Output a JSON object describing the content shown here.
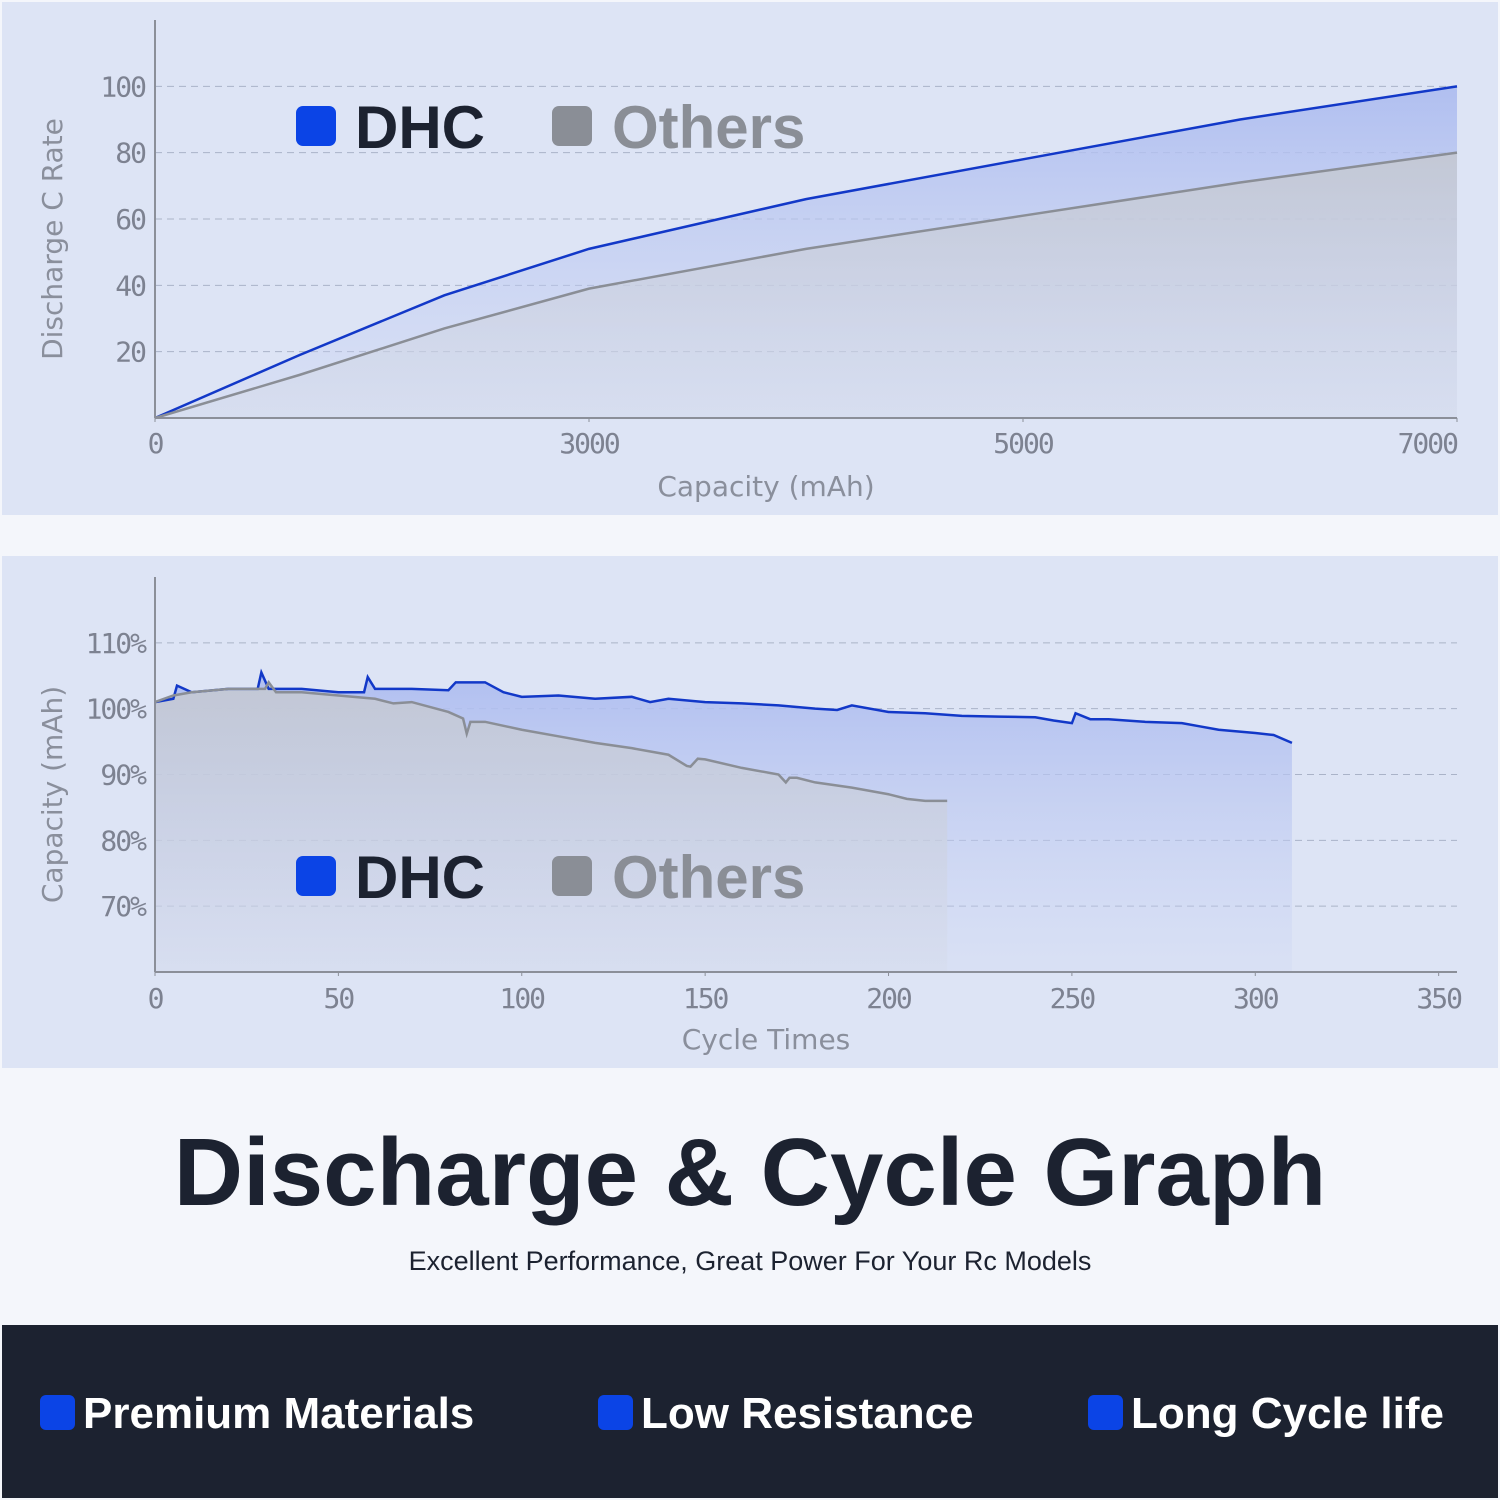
{
  "chart_data": [
    {
      "type": "line",
      "x_label": "Capacity (mAh)",
      "y_label": "Discharge C Rate",
      "x": [
        0,
        1000,
        2000,
        3000,
        4000,
        5000,
        6000,
        7000
      ],
      "series": [
        {
          "name": "DHC",
          "color": "#1238c8",
          "values": [
            0,
            19,
            37,
            51,
            66,
            78,
            90,
            100
          ]
        },
        {
          "name": "Others",
          "color": "#8a8e96",
          "values": [
            0,
            13,
            27,
            39,
            51,
            61,
            71,
            80
          ]
        }
      ],
      "xlim": [
        0,
        7000
      ],
      "xticks": [
        0,
        3000,
        5000,
        7000
      ],
      "ylim": [
        0,
        120
      ],
      "yticks": [
        20,
        40,
        60,
        80,
        100
      ],
      "grid": true
    },
    {
      "type": "line",
      "x_label": "Cycle Times",
      "y_label": "Capacity (mAh)",
      "series": [
        {
          "name": "DHC",
          "color": "#1238c8",
          "x": [
            0,
            5,
            6,
            10,
            20,
            28,
            29,
            31,
            40,
            50,
            57,
            58,
            60,
            70,
            80,
            82,
            90,
            95,
            100,
            110,
            120,
            130,
            135,
            140,
            150,
            160,
            170,
            180,
            186,
            190,
            200,
            210,
            220,
            230,
            240,
            245,
            250,
            251,
            255,
            260,
            270,
            280,
            285,
            290,
            300,
            305,
            310
          ],
          "values": [
            101,
            101.5,
            103.5,
            102.5,
            103,
            103,
            105.5,
            103,
            103,
            102.5,
            102.5,
            104.8,
            103,
            103,
            102.8,
            104,
            104,
            102.5,
            101.8,
            102,
            101.5,
            101.8,
            101,
            101.5,
            101,
            100.8,
            100.5,
            100,
            99.8,
            100.5,
            99.5,
            99.3,
            98.9,
            98.8,
            98.7,
            98.2,
            97.8,
            99.3,
            98.4,
            98.4,
            98,
            97.8,
            97.3,
            96.8,
            96.3,
            96,
            94.8
          ]
        },
        {
          "name": "Others",
          "color": "#8a8e96",
          "x": [
            0,
            5,
            10,
            20,
            30,
            31,
            33,
            40,
            50,
            60,
            65,
            70,
            80,
            84,
            85,
            86,
            90,
            100,
            110,
            120,
            130,
            140,
            145,
            146,
            148,
            150,
            160,
            170,
            172,
            173,
            175,
            180,
            190,
            200,
            205,
            210,
            216
          ],
          "values": [
            101,
            102,
            102.5,
            103,
            103,
            104,
            102.5,
            102.5,
            102,
            101.5,
            100.8,
            101,
            99.5,
            98.5,
            96.2,
            98,
            98,
            96.8,
            95.8,
            94.8,
            94,
            93,
            91.3,
            91.2,
            92.4,
            92.3,
            91,
            90,
            88.8,
            89.5,
            89.5,
            88.8,
            88,
            87,
            86.3,
            86,
            86
          ]
        }
      ],
      "xlim": [
        0,
        355
      ],
      "xticks": [
        0,
        50,
        100,
        150,
        200,
        250,
        300,
        350
      ],
      "ylim": [
        60,
        120
      ],
      "yticks": [
        {
          "value": 70,
          "label": "70%"
        },
        {
          "value": 80,
          "label": "80%"
        },
        {
          "value": 90,
          "label": "90%"
        },
        {
          "value": 100,
          "label": "100%"
        },
        {
          "value": 110,
          "label": "110%"
        }
      ],
      "grid": true
    }
  ],
  "header": {
    "title": "Discharge & Cycle Graph",
    "subtitle": "Excellent Performance, Great Power For Your Rc Models"
  },
  "features": [
    "Premium Materials",
    "Low Resistance",
    "Long Cycle life"
  ]
}
